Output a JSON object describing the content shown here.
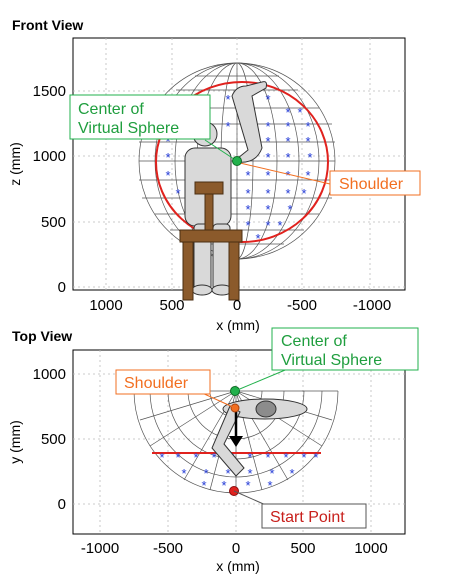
{
  "front_view": {
    "title": "Front View",
    "x_label": "x (mm)",
    "z_label": "z (mm)",
    "x_ticks": [
      "1000",
      "500",
      "0",
      "-500",
      "-1000"
    ],
    "z_ticks": [
      "0",
      "500",
      "1000",
      "1500"
    ],
    "callout_center_line1": "Center of",
    "callout_center_line2": "Virtual Sphere",
    "callout_shoulder": "Shoulder"
  },
  "top_view": {
    "title": "Top View",
    "x_label": "x (mm)",
    "y_label": "y (mm)",
    "x_ticks": [
      "-1000",
      "-500",
      "0",
      "500",
      "1000"
    ],
    "y_ticks": [
      "0",
      "500",
      "1000"
    ],
    "callout_center_line1": "Center of",
    "callout_center_line2": "Virtual Sphere",
    "callout_shoulder": "Shoulder",
    "callout_start": "Start Point"
  },
  "colors": {
    "green": "#22b14c",
    "orange": "#f26f21",
    "red": "#e0221e",
    "blue": "#2038d6",
    "chair": "#8b5a2b",
    "body": "#d9d9d9",
    "wire": "#555555"
  }
}
